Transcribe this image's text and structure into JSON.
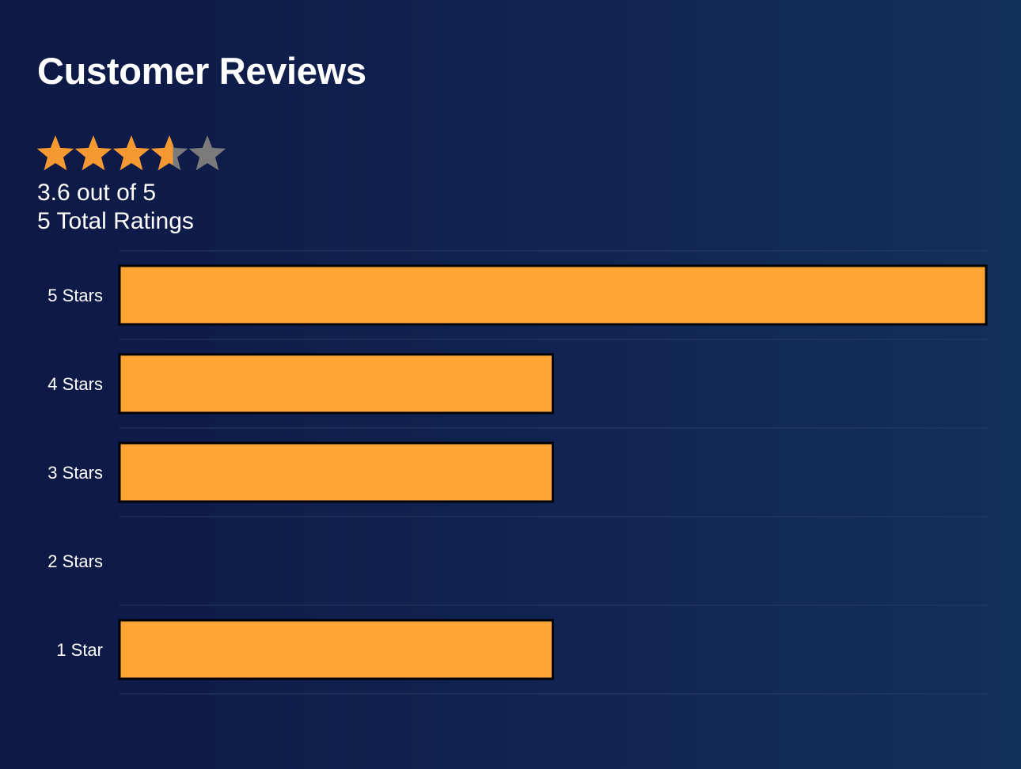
{
  "header": {
    "title": "Customer Reviews",
    "average_text": "3.6 out of 5",
    "total_text": "5 Total Ratings"
  },
  "rating": {
    "average": 3.6,
    "max": 5,
    "star_icon": "star-icon",
    "filled_color": "#f59a32",
    "empty_color": "#7a7a7a"
  },
  "chart_data": {
    "type": "bar",
    "orientation": "horizontal",
    "categories": [
      "5 Stars",
      "4 Stars",
      "3 Stars",
      "2 Stars",
      "1 Star"
    ],
    "values": [
      2,
      1,
      1,
      0,
      1
    ],
    "xlim": [
      0,
      2
    ],
    "grid": true,
    "bar_color": "#fea433",
    "bar_border_color": "#000000",
    "grid_color": "#2a3a66"
  }
}
